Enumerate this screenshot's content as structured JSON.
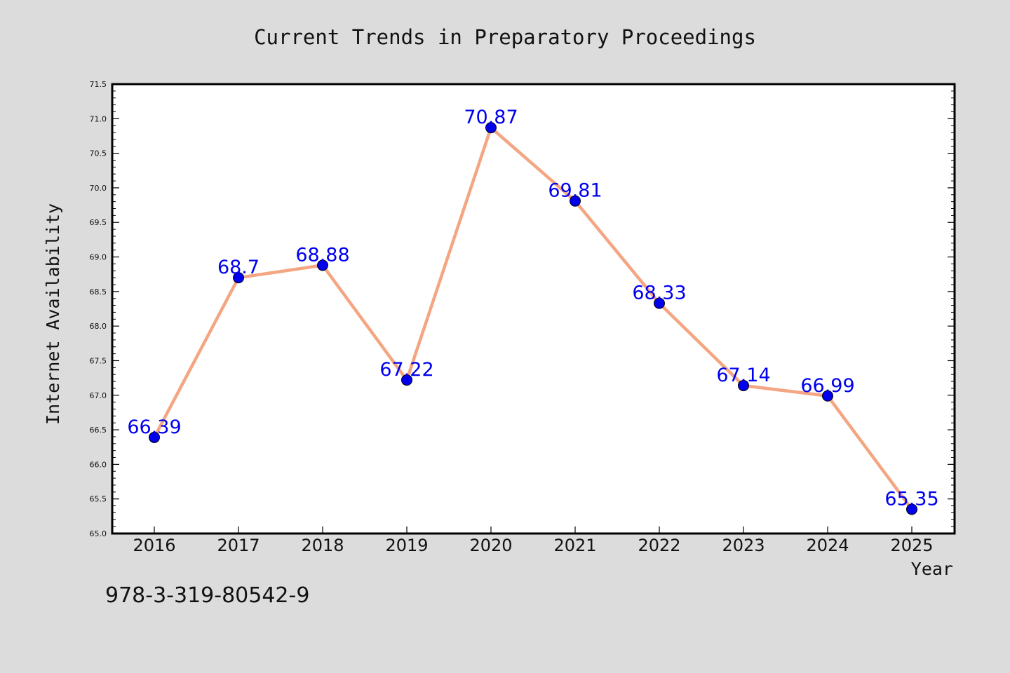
{
  "chart_data": {
    "type": "line",
    "title": "Current Trends in Preparatory Proceedings",
    "xlabel": "Year",
    "ylabel": "Internet Availability",
    "categories": [
      "2016",
      "2017",
      "2018",
      "2019",
      "2020",
      "2021",
      "2022",
      "2023",
      "2024",
      "2025"
    ],
    "series": [
      {
        "values": [
          66.39,
          68.7,
          68.88,
          67.22,
          70.87,
          69.81,
          68.33,
          67.14,
          66.99,
          65.35
        ],
        "labels": [
          "66.39",
          "68.7",
          "68.88",
          "67.22",
          "70.87",
          "69.81",
          "68.33",
          "67.14",
          "66.99",
          "65.35"
        ],
        "line_color": "#f4a582",
        "marker_color": "#0000ee"
      }
    ],
    "ylim": [
      65.0,
      71.5
    ],
    "yticks": [
      "65.0",
      "65.5",
      "66.0",
      "66.5",
      "67.0",
      "67.5",
      "68.0",
      "68.5",
      "69.0",
      "69.5",
      "70.0",
      "70.5",
      "71.0",
      "71.5"
    ],
    "grid": false,
    "label_color": "#0000ee"
  },
  "footer": {
    "isbn": "978-3-319-80542-9"
  }
}
